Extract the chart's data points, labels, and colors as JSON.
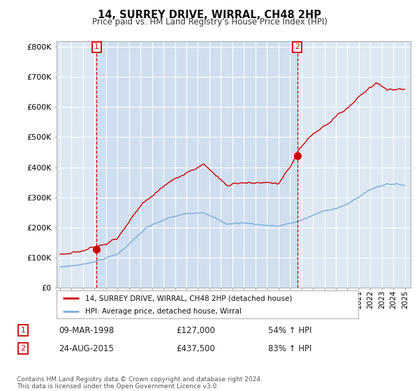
{
  "title": "14, SURREY DRIVE, WIRRAL, CH48 2HP",
  "subtitle": "Price paid vs. HM Land Registry's House Price Index (HPI)",
  "ylim": [
    0,
    800000
  ],
  "yticks": [
    0,
    100000,
    200000,
    300000,
    400000,
    500000,
    600000,
    700000,
    800000
  ],
  "ytick_labels": [
    "£0",
    "£100K",
    "£200K",
    "£300K",
    "£400K",
    "£500K",
    "£600K",
    "£700K",
    "£800K"
  ],
  "legend_property": "14, SURREY DRIVE, WIRRAL, CH48 2HP (detached house)",
  "legend_hpi": "HPI: Average price, detached house, Wirral",
  "transaction1_date": "09-MAR-1998",
  "transaction1_price": 127000,
  "transaction1_hpi": "54% ↑ HPI",
  "transaction1_x": 1998.19,
  "transaction2_date": "24-AUG-2015",
  "transaction2_price": 437500,
  "transaction2_hpi": "83% ↑ HPI",
  "transaction2_x": 2015.64,
  "footnote": "Contains HM Land Registry data © Crown copyright and database right 2024.\nThis data is licensed under the Open Government Licence v3.0.",
  "property_line_color": "#cc0000",
  "hpi_line_color": "#7aabdc",
  "vline_color": "#cc0000",
  "marker_color": "#cc0000",
  "grid_color": "#c8d8e8",
  "background_color": "#dde8f2",
  "plot_bg_color": "#dde8f2",
  "box_color": "#cc0000",
  "xmin": 1995.0,
  "xmax": 2025.5
}
